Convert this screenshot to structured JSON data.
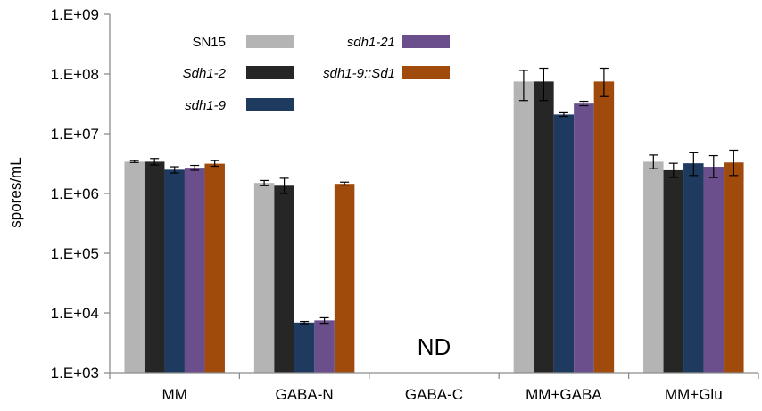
{
  "chart_data": {
    "type": "bar",
    "log_scale": true,
    "ylabel": "spores/mL",
    "xlabel": "",
    "ylim": [
      1000,
      1000000000
    ],
    "y_ticks": [
      1000,
      10000,
      100000,
      1000000,
      10000000,
      100000000,
      1000000000
    ],
    "y_tick_labels": [
      "1.E+03",
      "1.E+04",
      "1.E+05",
      "1.E+06",
      "1.E+07",
      "1.E+08",
      "1.E+09"
    ],
    "categories": [
      "MM",
      "GABA-N",
      "GABA-C",
      "MM+GABA",
      "MM+Glu"
    ],
    "grid": false,
    "legend_position": "top-left",
    "series": [
      {
        "name": "SN15",
        "italic": false,
        "color": "#b4b4b4",
        "values": [
          3400000,
          1500000,
          null,
          75000000,
          3400000
        ],
        "err_low": [
          3300000,
          1350000,
          null,
          36000000,
          2600000
        ],
        "err_high": [
          3550000,
          1650000,
          null,
          115000000,
          4400000
        ]
      },
      {
        "name": "Sdh1-2",
        "italic": true,
        "color": "#262626",
        "values": [
          3400000,
          1350000,
          null,
          75000000,
          2450000
        ],
        "err_low": [
          3000000,
          1000000,
          null,
          36000000,
          1850000
        ],
        "err_high": [
          3850000,
          1800000,
          null,
          125000000,
          3200000
        ]
      },
      {
        "name": "sdh1-9",
        "italic": true,
        "color": "#1e3a5f",
        "values": [
          2500000,
          6900,
          null,
          21000000,
          3200000
        ],
        "err_low": [
          2200000,
          6600,
          null,
          19500000,
          2000000
        ],
        "err_high": [
          2800000,
          7200,
          null,
          22500000,
          4800000
        ]
      },
      {
        "name": "sdh1-21",
        "italic": true,
        "color": "#6b4e8c",
        "values": [
          2700000,
          7500,
          null,
          32000000,
          2800000
        ],
        "err_low": [
          2450000,
          6700,
          null,
          29500000,
          1850000
        ],
        "err_high": [
          2950000,
          8300,
          null,
          35000000,
          4300000
        ]
      },
      {
        "name": "sdh1-9::Sd1",
        "italic": true,
        "color": "#a04a0c",
        "values": [
          3150000,
          1450000,
          null,
          75000000,
          3300000
        ],
        "err_low": [
          2850000,
          1380000,
          null,
          42000000,
          2000000
        ],
        "err_high": [
          3550000,
          1550000,
          null,
          125000000,
          5300000
        ]
      }
    ],
    "annotations": [
      {
        "text": "ND",
        "category": "GABA-C"
      }
    ]
  }
}
